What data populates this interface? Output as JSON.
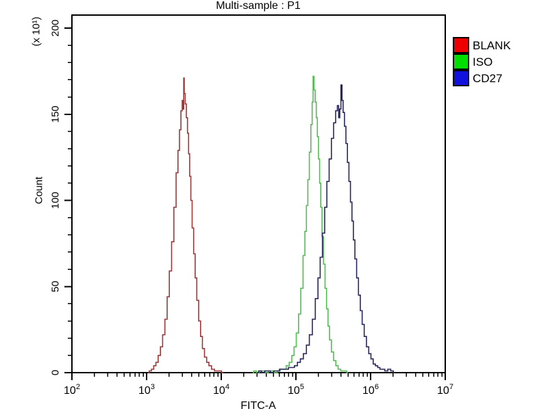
{
  "title": "Multi-sample : P1",
  "chart_data": {
    "type": "line",
    "subtype": "flow-cytometry-overlay-histogram",
    "title": "Multi-sample : P1",
    "xlabel": "FITC-A",
    "ylabel": "Count",
    "y_unit_label": "(x 10¹)",
    "x_scale": "log10",
    "xlim_log10": [
      2,
      7
    ],
    "ylim": [
      0,
      200
    ],
    "x_ticks": [
      {
        "base": "10",
        "exp": "2"
      },
      {
        "base": "10",
        "exp": "3"
      },
      {
        "base": "10",
        "exp": "4"
      },
      {
        "base": "10",
        "exp": "5"
      },
      {
        "base": "10",
        "exp": "6"
      },
      {
        "base": "10",
        "exp": "7"
      }
    ],
    "y_ticks": [
      0,
      50,
      100,
      150,
      200
    ],
    "y_minor_step": 10,
    "grid": false,
    "legend_position": "right-outside",
    "axis_color": "#000000",
    "background_color": "#ffffff",
    "series": [
      {
        "name": "BLANK",
        "legend_color": "#EE0000",
        "line_color": "#993A3A",
        "peak_log10x": 3.5,
        "peak_count": 171,
        "points": [
          [
            3.02,
            0
          ],
          [
            3.05,
            1
          ],
          [
            3.08,
            2
          ],
          [
            3.11,
            4
          ],
          [
            3.14,
            6
          ],
          [
            3.17,
            10
          ],
          [
            3.2,
            15
          ],
          [
            3.23,
            22
          ],
          [
            3.26,
            31
          ],
          [
            3.29,
            44
          ],
          [
            3.32,
            59
          ],
          [
            3.35,
            76
          ],
          [
            3.38,
            96
          ],
          [
            3.41,
            116
          ],
          [
            3.43,
            129
          ],
          [
            3.45,
            141
          ],
          [
            3.47,
            152
          ],
          [
            3.485,
            158
          ],
          [
            3.495,
            153
          ],
          [
            3.5,
            171
          ],
          [
            3.51,
            162
          ],
          [
            3.525,
            156
          ],
          [
            3.54,
            148
          ],
          [
            3.555,
            139
          ],
          [
            3.57,
            127
          ],
          [
            3.585,
            114
          ],
          [
            3.6,
            100
          ],
          [
            3.62,
            84
          ],
          [
            3.64,
            69
          ],
          [
            3.66,
            55
          ],
          [
            3.685,
            42
          ],
          [
            3.71,
            30
          ],
          [
            3.735,
            21
          ],
          [
            3.76,
            14
          ],
          [
            3.79,
            9
          ],
          [
            3.82,
            6
          ],
          [
            3.85,
            4
          ],
          [
            3.89,
            2
          ],
          [
            3.93,
            1
          ],
          [
            3.98,
            1
          ],
          [
            4.03,
            0
          ]
        ]
      },
      {
        "name": "ISO",
        "legend_color": "#00DD00",
        "line_color": "#55BB55",
        "peak_log10x": 5.23,
        "peak_count": 172,
        "points": [
          [
            4.42,
            0
          ],
          [
            4.45,
            1
          ],
          [
            4.49,
            0
          ],
          [
            4.53,
            1
          ],
          [
            4.57,
            1
          ],
          [
            4.61,
            0
          ],
          [
            4.65,
            1
          ],
          [
            4.69,
            1
          ],
          [
            4.73,
            0
          ],
          [
            4.77,
            1
          ],
          [
            4.81,
            2
          ],
          [
            4.85,
            2
          ],
          [
            4.89,
            4
          ],
          [
            4.93,
            6
          ],
          [
            4.96,
            10
          ],
          [
            4.99,
            15
          ],
          [
            5.02,
            23
          ],
          [
            5.05,
            34
          ],
          [
            5.08,
            49
          ],
          [
            5.11,
            68
          ],
          [
            5.13,
            82
          ],
          [
            5.15,
            97
          ],
          [
            5.17,
            112
          ],
          [
            5.19,
            128
          ],
          [
            5.21,
            144
          ],
          [
            5.225,
            157
          ],
          [
            5.235,
            172
          ],
          [
            5.25,
            164
          ],
          [
            5.265,
            157
          ],
          [
            5.28,
            148
          ],
          [
            5.295,
            137
          ],
          [
            5.31,
            124
          ],
          [
            5.325,
            110
          ],
          [
            5.34,
            96
          ],
          [
            5.36,
            79
          ],
          [
            5.38,
            63
          ],
          [
            5.4,
            49
          ],
          [
            5.42,
            37
          ],
          [
            5.44,
            27
          ],
          [
            5.46,
            19
          ],
          [
            5.49,
            12
          ],
          [
            5.52,
            7
          ],
          [
            5.55,
            4
          ],
          [
            5.58,
            2
          ],
          [
            5.62,
            1
          ],
          [
            5.66,
            1
          ],
          [
            5.7,
            0
          ]
        ]
      },
      {
        "name": "CD27",
        "legend_color": "#1111DD",
        "line_color": "#28285C",
        "peak_log10x": 5.61,
        "peak_count": 167,
        "points": [
          [
            4.48,
            0
          ],
          [
            4.52,
            1
          ],
          [
            4.56,
            0
          ],
          [
            4.6,
            1
          ],
          [
            4.64,
            1
          ],
          [
            4.68,
            0
          ],
          [
            4.72,
            1
          ],
          [
            4.76,
            1
          ],
          [
            4.8,
            2
          ],
          [
            4.84,
            2
          ],
          [
            4.88,
            2
          ],
          [
            4.92,
            3
          ],
          [
            4.96,
            3
          ],
          [
            5.0,
            4
          ],
          [
            5.04,
            6
          ],
          [
            5.08,
            8
          ],
          [
            5.12,
            11
          ],
          [
            5.16,
            16
          ],
          [
            5.2,
            22
          ],
          [
            5.24,
            31
          ],
          [
            5.28,
            43
          ],
          [
            5.31,
            55
          ],
          [
            5.34,
            67
          ],
          [
            5.37,
            81
          ],
          [
            5.4,
            96
          ],
          [
            5.43,
            111
          ],
          [
            5.46,
            124
          ],
          [
            5.49,
            136
          ],
          [
            5.52,
            145
          ],
          [
            5.545,
            152
          ],
          [
            5.565,
            155
          ],
          [
            5.58,
            148
          ],
          [
            5.595,
            153
          ],
          [
            5.61,
            167
          ],
          [
            5.625,
            158
          ],
          [
            5.64,
            151
          ],
          [
            5.66,
            143
          ],
          [
            5.68,
            133
          ],
          [
            5.7,
            122
          ],
          [
            5.72,
            111
          ],
          [
            5.74,
            99
          ],
          [
            5.76,
            88
          ],
          [
            5.78,
            77
          ],
          [
            5.8,
            66
          ],
          [
            5.825,
            55
          ],
          [
            5.85,
            45
          ],
          [
            5.875,
            36
          ],
          [
            5.9,
            28
          ],
          [
            5.93,
            21
          ],
          [
            5.96,
            15
          ],
          [
            5.99,
            11
          ],
          [
            6.02,
            8
          ],
          [
            6.05,
            5
          ],
          [
            6.08,
            4
          ],
          [
            6.11,
            3
          ],
          [
            6.14,
            2
          ],
          [
            6.17,
            2
          ],
          [
            6.21,
            1
          ],
          [
            6.25,
            2
          ],
          [
            6.29,
            1
          ],
          [
            6.32,
            0
          ]
        ]
      }
    ]
  }
}
